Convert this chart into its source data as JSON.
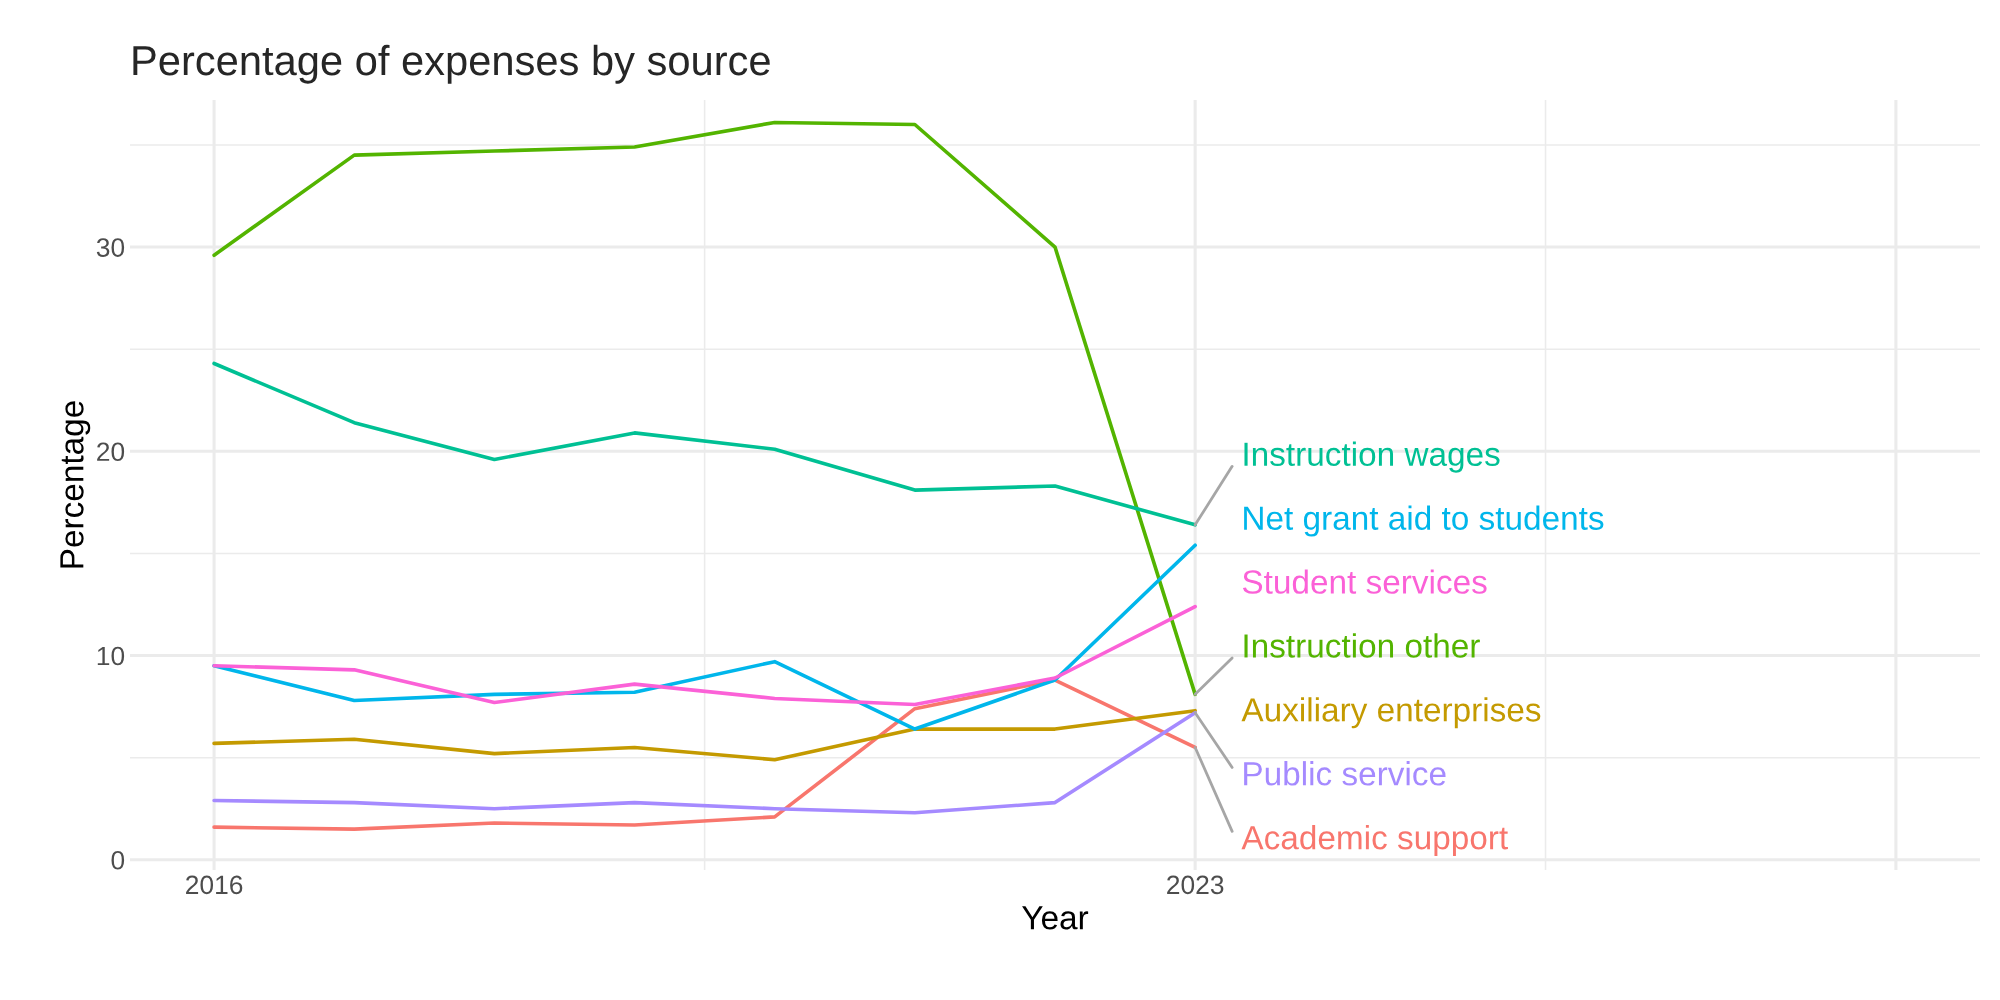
{
  "chart_data": {
    "type": "line",
    "title": "Percentage of expenses by source",
    "xlabel": "Year",
    "ylabel": "Percentage",
    "x": [
      2016,
      2017,
      2018,
      2019,
      2020,
      2021,
      2022,
      2023
    ],
    "xlim": [
      2015.4,
      2028.6
    ],
    "xticks": [
      2016,
      2023,
      {
        "value": 2028,
        "label": null
      }
    ],
    "ylim": [
      -0.5,
      37.2
    ],
    "yticks": [
      0,
      10,
      20,
      30
    ],
    "grid": true,
    "legend": false,
    "marker": "none",
    "line_style": "solid",
    "series": [
      {
        "name": "Academic support",
        "color": "#F8766D",
        "values": [
          1.6,
          1.5,
          1.8,
          1.7,
          2.1,
          7.4,
          8.8,
          5.5
        ]
      },
      {
        "name": "Auxiliary enterprises",
        "color": "#C49A00",
        "values": [
          5.7,
          5.9,
          5.2,
          5.5,
          4.9,
          6.4,
          6.4,
          7.3
        ]
      },
      {
        "name": "Instruction other",
        "color": "#53B400",
        "values": [
          29.6,
          34.5,
          34.7,
          34.9,
          36.1,
          36.0,
          30.0,
          8.1
        ]
      },
      {
        "name": "Instruction wages",
        "color": "#00C094",
        "values": [
          24.3,
          21.4,
          19.6,
          20.9,
          20.1,
          18.1,
          18.3,
          16.4
        ]
      },
      {
        "name": "Net grant aid to students",
        "color": "#00B6EB",
        "values": [
          9.5,
          7.8,
          8.1,
          8.2,
          9.7,
          6.4,
          8.8,
          15.4
        ]
      },
      {
        "name": "Public service",
        "color": "#A58AFF",
        "values": [
          2.9,
          2.8,
          2.5,
          2.8,
          2.5,
          2.3,
          2.8,
          7.2
        ]
      },
      {
        "name": "Student services",
        "color": "#FB61D7",
        "values": [
          9.5,
          9.3,
          7.7,
          8.6,
          7.9,
          7.6,
          8.9,
          12.4
        ]
      }
    ]
  }
}
